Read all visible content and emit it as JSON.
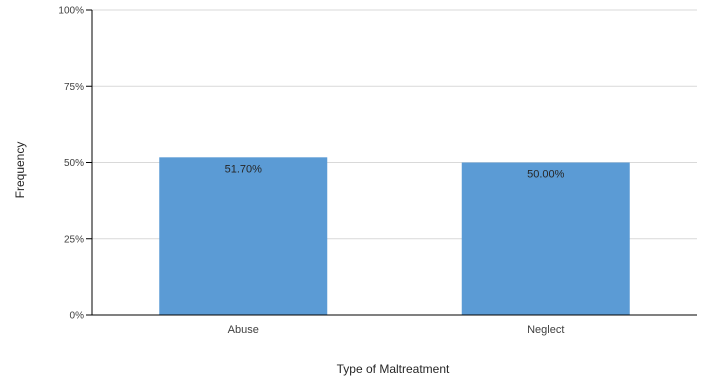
{
  "chart_data": {
    "type": "bar",
    "categories": [
      "Abuse",
      "Neglect"
    ],
    "values": [
      51.7,
      50.0
    ],
    "data_labels": [
      "51.70%",
      "50.00%"
    ],
    "xlabel": "Type of Maltreatment",
    "ylabel": "Frequency",
    "ylim": [
      0,
      100
    ],
    "yticks": [
      0,
      25,
      50,
      75,
      100
    ],
    "ytick_labels": [
      "0%",
      "25%",
      "50%",
      "75%",
      "100%"
    ],
    "grid": true,
    "legend": "none",
    "colors": {
      "bar": "#5b9bd5",
      "grid": "#d9d9d9",
      "axis": "#000000"
    }
  }
}
